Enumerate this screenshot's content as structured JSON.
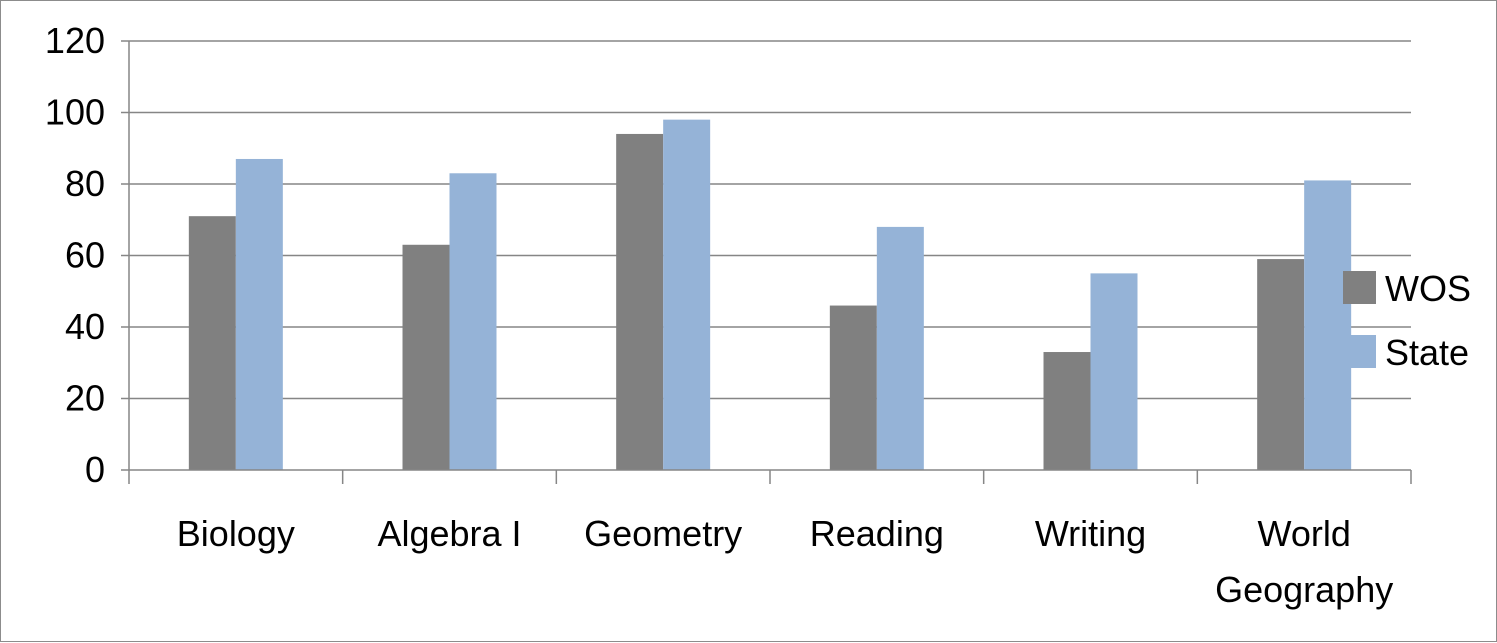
{
  "chart_data": {
    "type": "bar",
    "categories": [
      [
        "Biology"
      ],
      [
        "Algebra I"
      ],
      [
        "Geometry"
      ],
      [
        "Reading"
      ],
      [
        "Writing"
      ],
      [
        "World",
        "Geography"
      ]
    ],
    "series": [
      {
        "name": "WOS",
        "color": "#808080",
        "values": [
          71,
          63,
          94,
          46,
          33,
          59
        ]
      },
      {
        "name": "State",
        "color": "#95b3d7",
        "values": [
          87,
          83,
          98,
          68,
          55,
          81
        ]
      }
    ],
    "ylim": [
      0,
      120
    ],
    "yticks": [
      0,
      20,
      40,
      60,
      80,
      100,
      120
    ],
    "grid": true,
    "gridline_color": "#868686",
    "legend_position": "right"
  }
}
